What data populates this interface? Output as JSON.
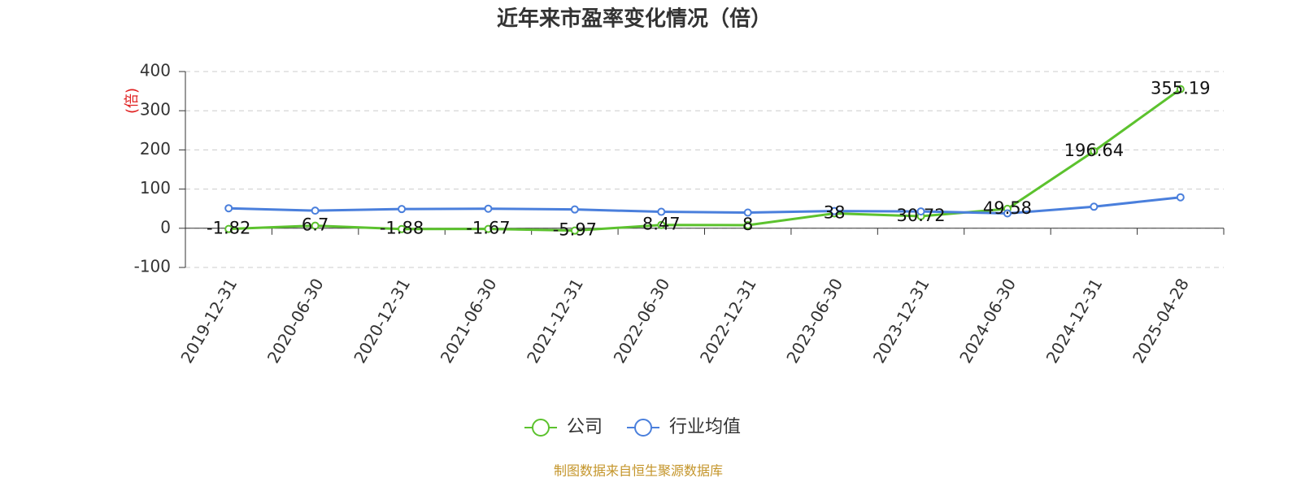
{
  "chart_data": {
    "type": "line",
    "title": "近年来市盈率变化情况（倍）",
    "y_label": "(倍)",
    "source": "制图数据来自恒生聚源数据库",
    "categories": [
      "2019-12-31",
      "2020-06-30",
      "2020-12-31",
      "2021-06-30",
      "2021-12-31",
      "2022-06-30",
      "2022-12-31",
      "2023-06-30",
      "2023-12-31",
      "2024-06-30",
      "2024-12-31",
      "2025-04-28"
    ],
    "series": [
      {
        "name": "公司",
        "color": "#5cc22e",
        "values": [
          -1.82,
          6.7,
          -1.88,
          -1.67,
          -5.97,
          8.47,
          8,
          38,
          30.72,
          49.58,
          196.64,
          355.19
        ],
        "show_labels": true
      },
      {
        "name": "行业均值",
        "color": "#4a7fdc",
        "values": [
          51,
          45,
          49,
          50,
          48,
          42,
          40,
          44,
          43,
          38,
          55,
          79
        ],
        "show_labels": false
      }
    ],
    "ylim": [
      -100,
      400
    ],
    "yticks": [
      -100,
      0,
      100,
      200,
      300,
      400
    ],
    "grid": true
  }
}
